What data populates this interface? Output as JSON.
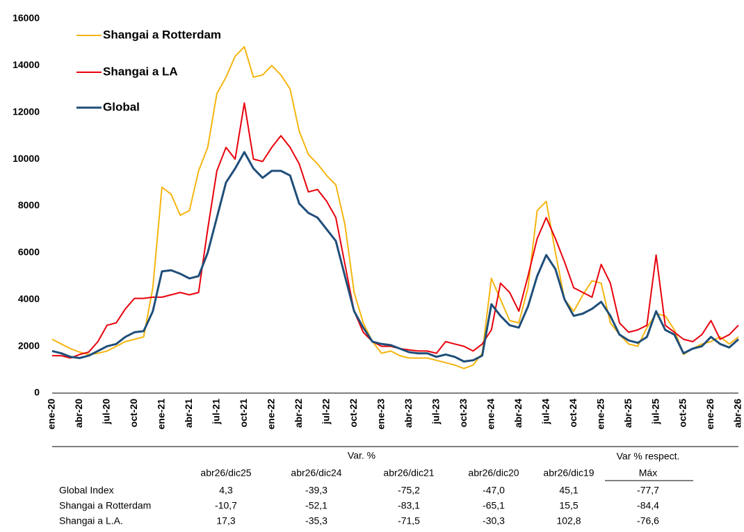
{
  "chart_data": {
    "type": "line",
    "categories": [
      "ene-20",
      null,
      null,
      "abr-20",
      null,
      null,
      "jul-20",
      null,
      null,
      "oct-20",
      null,
      null,
      "ene-21",
      null,
      null,
      "abr-21",
      null,
      null,
      "jul-21",
      null,
      null,
      "oct-21",
      null,
      null,
      "ene-22",
      null,
      null,
      "abr-22",
      null,
      null,
      "jul-22",
      null,
      null,
      "oct-22",
      null,
      null,
      "ene-23",
      null,
      null,
      "abr-23",
      null,
      null,
      "jul-23",
      null,
      null,
      "oct-23",
      null,
      null,
      "ene-24",
      null,
      null,
      "abr-24",
      null,
      null,
      "jul-24",
      null,
      null,
      "oct-24",
      null,
      null,
      "ene-25",
      null,
      null,
      "abr-25",
      null,
      null,
      "jul-25",
      null,
      null,
      "oct-25",
      null,
      null,
      "ene-26",
      null,
      null,
      "abr-26"
    ],
    "series": [
      {
        "name": "Shangai a Rotterdam",
        "color": "#f5b50f",
        "values": [
          2300,
          2100,
          1900,
          1750,
          1650,
          1700,
          1800,
          2000,
          2200,
          2300,
          2400,
          4500,
          8800,
          8500,
          7600,
          7800,
          9500,
          10500,
          12800,
          13500,
          14400,
          14800,
          13500,
          13600,
          14000,
          13600,
          13000,
          11200,
          10200,
          9800,
          9300,
          8900,
          7200,
          4300,
          3000,
          2200,
          1700,
          1800,
          1600,
          1500,
          1500,
          1500,
          1400,
          1300,
          1200,
          1050,
          1200,
          1700,
          4900,
          4000,
          3100,
          3000,
          4500,
          7800,
          8200,
          6000,
          4000,
          3500,
          4200,
          4800,
          4700,
          3000,
          2500,
          2100,
          2000,
          2800,
          3400,
          3300,
          2700,
          1650,
          1900,
          2100,
          2200,
          2400,
          2100,
          2400
        ]
      },
      {
        "name": "Shangai a LA",
        "color": "#e8000b",
        "values": [
          1600,
          1600,
          1500,
          1650,
          1750,
          2200,
          2900,
          3000,
          3600,
          4050,
          4050,
          4100,
          4100,
          4200,
          4300,
          4200,
          4300,
          7000,
          9500,
          10500,
          10000,
          12400,
          10000,
          9900,
          10500,
          11000,
          10500,
          9800,
          8600,
          8700,
          8200,
          7500,
          5500,
          3500,
          2600,
          2200,
          2000,
          2000,
          1900,
          1850,
          1800,
          1800,
          1700,
          2200,
          2100,
          2000,
          1800,
          2100,
          2700,
          4700,
          4300,
          3500,
          5000,
          6600,
          7500,
          6600,
          5600,
          4500,
          4300,
          4100,
          5500,
          4700,
          3000,
          2600,
          2700,
          2900,
          5900,
          2900,
          2600,
          2300,
          2200,
          2500,
          3100,
          2300,
          2500,
          2900
        ]
      },
      {
        "name": "Global",
        "color": "#1f4e79",
        "values": [
          1800,
          1700,
          1550,
          1500,
          1600,
          1800,
          2000,
          2100,
          2400,
          2600,
          2650,
          3500,
          5200,
          5250,
          5100,
          4900,
          5000,
          6000,
          7500,
          9000,
          9600,
          10300,
          9600,
          9200,
          9500,
          9500,
          9300,
          8100,
          7700,
          7500,
          7000,
          6500,
          5000,
          3500,
          2800,
          2200,
          2100,
          2050,
          1900,
          1750,
          1700,
          1700,
          1550,
          1650,
          1550,
          1350,
          1400,
          1600,
          3800,
          3300,
          2900,
          2800,
          3700,
          5000,
          5900,
          5300,
          4000,
          3300,
          3400,
          3600,
          3900,
          3300,
          2500,
          2250,
          2150,
          2400,
          3500,
          2700,
          2500,
          1700,
          1900,
          2000,
          2400,
          2100,
          1950,
          2300
        ]
      }
    ],
    "ylim": [
      0,
      16000
    ],
    "yticks": [
      0,
      2000,
      4000,
      6000,
      8000,
      10000,
      12000,
      14000,
      16000
    ],
    "grid": false
  },
  "table": {
    "group_header": "Var. %",
    "last_header": [
      "Var % respect.",
      "Máx"
    ],
    "columns": [
      "abr26/dic25",
      "abr26/dic24",
      "abr26/dic21",
      "abr26/dic20",
      "abr26/dic19"
    ],
    "rows": [
      [
        "Global Index",
        "4,3",
        "-39,3",
        "-75,2",
        "-47,0",
        "45,1",
        "-77,7"
      ],
      [
        "Shangai a Rotterdam",
        "-10,7",
        "-52,1",
        "-83,1",
        "-65,1",
        "15,5",
        "-84,4"
      ],
      [
        "Shangai a L.A.",
        "17,3",
        "-35,3",
        "-71,5",
        "-30,3",
        "102,8",
        "-76,6"
      ]
    ]
  }
}
